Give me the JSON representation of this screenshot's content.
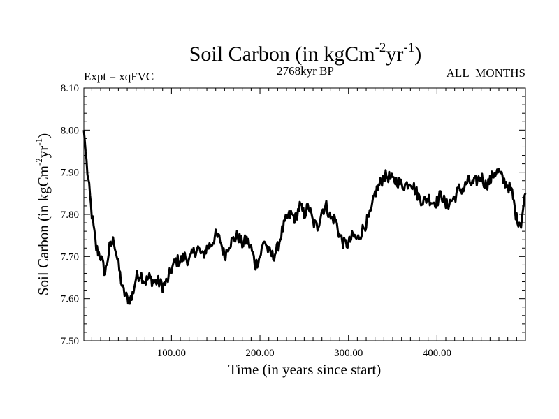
{
  "chart_data": {
    "type": "line",
    "title": {
      "prefix": "Soil Carbon (in kgCm",
      "exp1": "-2",
      "mid": "yr",
      "exp2": "-1",
      "suffix": ")"
    },
    "experiment_label": "Expt = xqFVC",
    "period_label": "2768kyr BP",
    "months_label": "ALL_MONTHS",
    "xlabel": "Time (in years since start)",
    "ylabel": {
      "prefix": "Soil Carbon (in kgCm",
      "exp1": "-2",
      "mid": "yr",
      "exp2": "-1",
      "suffix": ")"
    },
    "xlim": [
      1,
      500
    ],
    "ylim": [
      7.5,
      8.1
    ],
    "x_ticks": [
      {
        "value": 100,
        "label": "100.00"
      },
      {
        "value": 200,
        "label": "200.00"
      },
      {
        "value": 300,
        "label": "300.00"
      },
      {
        "value": 400,
        "label": "400.00"
      }
    ],
    "y_ticks": [
      {
        "value": 7.5,
        "label": "7.50"
      },
      {
        "value": 7.6,
        "label": "7.60"
      },
      {
        "value": 7.7,
        "label": "7.70"
      },
      {
        "value": 7.8,
        "label": "7.80"
      },
      {
        "value": 7.9,
        "label": "7.90"
      },
      {
        "value": 8.0,
        "label": "8.00"
      },
      {
        "value": 8.1,
        "label": "8.10"
      }
    ],
    "series": [
      {
        "name": "Soil Carbon",
        "color": "#000000",
        "x": [
          1,
          5,
          10,
          15,
          20,
          25,
          30,
          35,
          40,
          45,
          50,
          55,
          60,
          65,
          70,
          75,
          80,
          85,
          90,
          95,
          100,
          105,
          110,
          115,
          120,
          125,
          130,
          135,
          140,
          145,
          150,
          155,
          160,
          165,
          170,
          175,
          180,
          185,
          190,
          195,
          200,
          205,
          210,
          215,
          220,
          225,
          230,
          235,
          240,
          245,
          250,
          255,
          260,
          265,
          270,
          275,
          280,
          285,
          290,
          295,
          300,
          305,
          310,
          315,
          320,
          325,
          330,
          335,
          340,
          345,
          350,
          355,
          360,
          365,
          370,
          375,
          380,
          385,
          390,
          395,
          400,
          405,
          410,
          415,
          420,
          425,
          430,
          435,
          440,
          445,
          450,
          455,
          460,
          465,
          470,
          475,
          480,
          485,
          490,
          495,
          500
        ],
        "values": [
          8.0,
          7.9,
          7.8,
          7.72,
          7.7,
          7.66,
          7.72,
          7.74,
          7.68,
          7.62,
          7.6,
          7.6,
          7.65,
          7.66,
          7.64,
          7.65,
          7.64,
          7.64,
          7.63,
          7.64,
          7.67,
          7.69,
          7.69,
          7.7,
          7.69,
          7.71,
          7.72,
          7.7,
          7.72,
          7.73,
          7.75,
          7.74,
          7.7,
          7.73,
          7.74,
          7.75,
          7.73,
          7.74,
          7.72,
          7.68,
          7.7,
          7.74,
          7.71,
          7.7,
          7.72,
          7.76,
          7.79,
          7.8,
          7.79,
          7.82,
          7.8,
          7.82,
          7.78,
          7.77,
          7.81,
          7.82,
          7.79,
          7.79,
          7.75,
          7.73,
          7.73,
          7.75,
          7.74,
          7.76,
          7.78,
          7.8,
          7.85,
          7.87,
          7.89,
          7.89,
          7.88,
          7.88,
          7.87,
          7.87,
          7.88,
          7.86,
          7.84,
          7.83,
          7.84,
          7.83,
          7.83,
          7.85,
          7.82,
          7.83,
          7.84,
          7.86,
          7.86,
          7.88,
          7.87,
          7.88,
          7.89,
          7.87,
          7.88,
          7.9,
          7.9,
          7.88,
          7.87,
          7.85,
          7.79,
          7.78,
          7.85
        ]
      }
    ]
  }
}
